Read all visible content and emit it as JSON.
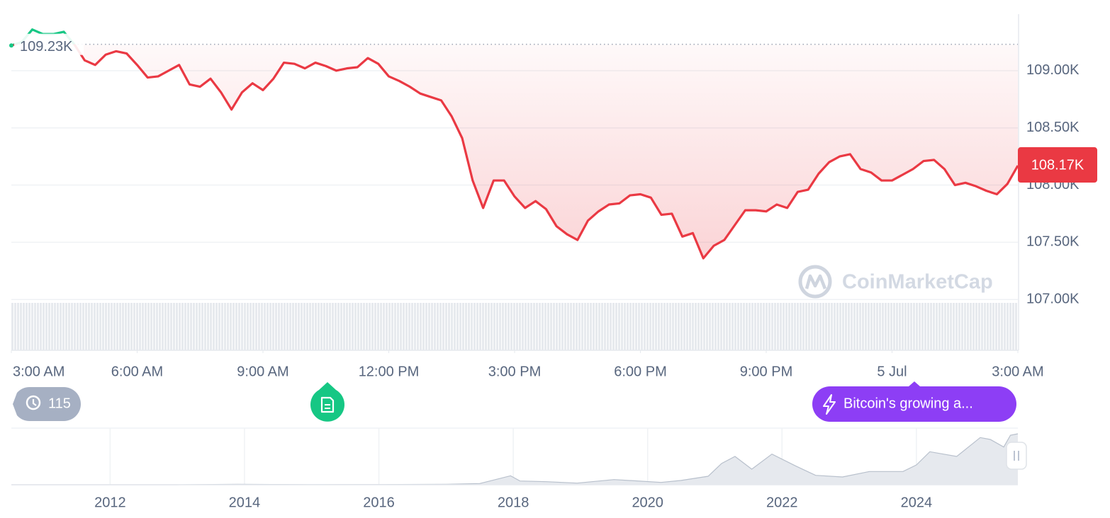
{
  "chart_data": [
    {
      "type": "line",
      "x": [
        3,
        3.25,
        3.5,
        3.75,
        4,
        4.25,
        4.5,
        4.75,
        5,
        5.25,
        5.5,
        5.75,
        6,
        6.25,
        6.5,
        6.75,
        7,
        7.25,
        7.5,
        7.75,
        8,
        8.25,
        8.5,
        8.75,
        9,
        9.25,
        9.5,
        9.75,
        10,
        10.25,
        10.5,
        10.75,
        11,
        11.25,
        11.5,
        11.75,
        12,
        12.25,
        12.5,
        12.75,
        13,
        13.25,
        13.5,
        13.75,
        14,
        14.25,
        14.5,
        14.75,
        15,
        15.25,
        15.5,
        15.75,
        16,
        16.25,
        16.5,
        16.75,
        17,
        17.25,
        17.5,
        17.75,
        18,
        18.25,
        18.5,
        18.75,
        19,
        19.25,
        19.5,
        19.75,
        20,
        20.25,
        20.5,
        20.75,
        21,
        21.25,
        21.5,
        21.75,
        22,
        22.25,
        22.5,
        22.75,
        23,
        23.25,
        23.5,
        23.75,
        24,
        24.25,
        24.5,
        24.75,
        25,
        25.25,
        25.5,
        25.75,
        26,
        26.25,
        26.5,
        26.75,
        27
      ],
      "values": [
        109220,
        109250,
        109360,
        109320,
        109320,
        109340,
        109230,
        109090,
        109050,
        109140,
        109170,
        109150,
        109050,
        108940,
        108950,
        109000,
        109050,
        108880,
        108860,
        108930,
        108810,
        108660,
        108810,
        108890,
        108830,
        108930,
        109070,
        109060,
        109020,
        109070,
        109040,
        109000,
        109020,
        109030,
        109110,
        109060,
        108950,
        108910,
        108860,
        108800,
        108770,
        108740,
        108600,
        108410,
        108040,
        107800,
        108040,
        108040,
        107900,
        107800,
        107860,
        107790,
        107640,
        107570,
        107520,
        107690,
        107770,
        107830,
        107840,
        107910,
        107920,
        107890,
        107740,
        107750,
        107550,
        107580,
        107360,
        107470,
        107520,
        107650,
        107780,
        107780,
        107770,
        107830,
        107800,
        107940,
        107960,
        108100,
        108200,
        108250,
        108270,
        108140,
        108110,
        108040,
        108040,
        108090,
        108140,
        108210,
        108220,
        108140,
        108000,
        108020,
        107990,
        107950,
        107920,
        108010,
        108170
      ],
      "color": "#ea3943",
      "color_above_reference": "#16c784",
      "reference": {
        "value": 109230,
        "label": "109.23K"
      },
      "last_price": {
        "value": 108170,
        "label": "108.17K"
      },
      "xlim": [
        3,
        27
      ],
      "xticks": [
        {
          "value": 3,
          "label": "3:00 AM"
        },
        {
          "value": 6,
          "label": "6:00 AM"
        },
        {
          "value": 9,
          "label": "9:00 AM"
        },
        {
          "value": 12,
          "label": "12:00 PM"
        },
        {
          "value": 15,
          "label": "3:00 PM"
        },
        {
          "value": 18,
          "label": "6:00 PM"
        },
        {
          "value": 21,
          "label": "9:00 PM"
        },
        {
          "value": 24,
          "label": "5 Jul"
        },
        {
          "value": 27,
          "label": "3:00 AM"
        }
      ],
      "ylim": [
        106556,
        109494
      ],
      "yticks": [
        {
          "value": 107000,
          "label": "107.00K"
        },
        {
          "value": 107500,
          "label": "107.50K"
        },
        {
          "value": 108000,
          "label": "108.00K"
        },
        {
          "value": 108500,
          "label": "108.50K"
        },
        {
          "value": 109000,
          "label": "109.00K"
        }
      ],
      "grid": true
    },
    {
      "type": "area",
      "x": [
        2010.53,
        2011,
        2011.5,
        2012,
        2013,
        2013.9,
        2014.5,
        2015,
        2016,
        2017,
        2017.5,
        2017.96,
        2018.1,
        2018.5,
        2018.95,
        2019.5,
        2020.2,
        2020.5,
        2020.9,
        2021.1,
        2021.3,
        2021.55,
        2021.85,
        2022.2,
        2022.5,
        2022.9,
        2023.3,
        2023.8,
        2024,
        2024.2,
        2024.6,
        2024.95,
        2025.1,
        2025.3,
        2025.4,
        2025.51
      ],
      "values": [
        0.07,
        0.3,
        15,
        5,
        13,
        1000,
        600,
        300,
        430,
        1000,
        2500,
        19000,
        8000,
        6500,
        3500,
        11000,
        5000,
        9200,
        18000,
        45000,
        60000,
        33000,
        65000,
        40000,
        20000,
        16500,
        28000,
        28000,
        42000,
        70000,
        60000,
        100000,
        96000,
        80000,
        105000,
        108000
      ],
      "color": "#b8c0cc",
      "xlim": [
        2010.53,
        2025.51
      ],
      "xticks": [
        2012,
        2014,
        2016,
        2018,
        2020,
        2022,
        2024
      ],
      "ylim": [
        0,
        120000
      ],
      "grid": true
    }
  ],
  "badges": {
    "history_count": 115,
    "news": "Bitcoin's growing a..."
  },
  "watermark": "CoinMarketCap"
}
